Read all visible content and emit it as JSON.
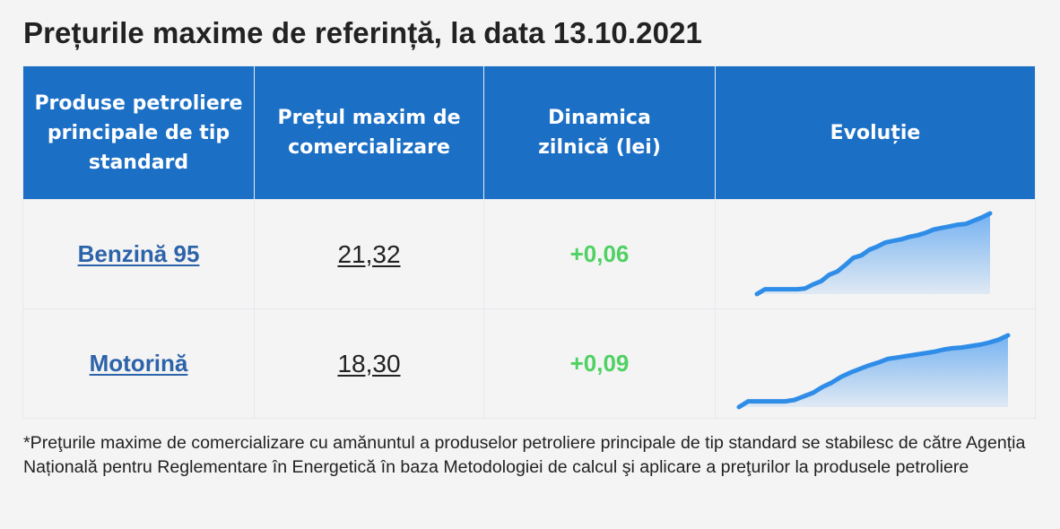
{
  "title": "Prețurile maxime de referință, la data 13.10.2021",
  "table": {
    "headers": {
      "product": "Produse petroliere principale de tip standard",
      "price": "Prețul maxim de comercializare",
      "dynamics": "Dinamica zilnică (lei)",
      "evolution": "Evoluție"
    },
    "rows": [
      {
        "product": "Benzină 95",
        "price": "21,32",
        "delta": "+0,06",
        "trend": [
          0,
          0.06,
          0.06,
          0.06,
          0.06,
          0.06,
          0.07,
          0.12,
          0.16,
          0.24,
          0.28,
          0.36,
          0.45,
          0.48,
          0.55,
          0.59,
          0.64,
          0.66,
          0.68,
          0.71,
          0.73,
          0.76,
          0.8,
          0.82,
          0.84,
          0.86,
          0.87,
          0.91,
          0.95,
          1.0
        ]
      },
      {
        "product": "Motorină",
        "price": "18,30",
        "delta": "+0,09",
        "trend": [
          0,
          0.08,
          0.08,
          0.08,
          0.08,
          0.08,
          0.1,
          0.15,
          0.2,
          0.28,
          0.34,
          0.42,
          0.48,
          0.53,
          0.58,
          0.62,
          0.67,
          0.69,
          0.71,
          0.73,
          0.75,
          0.77,
          0.8,
          0.82,
          0.83,
          0.85,
          0.87,
          0.9,
          0.94,
          1.0
        ]
      }
    ]
  },
  "footnote": "*Preţurile maxime de comercializare cu amănuntul a produselor petroliere principale de tip standard se stabilesc de către Agenția Națională pentru Reglementare în Energetică în baza Metodologiei de calcul şi aplicare a preţurilor la produsele petroliere",
  "colors": {
    "header_bg": "#1b6fc5",
    "link": "#2c63a9",
    "delta_positive": "#4fd163",
    "spark_line": "#2f8de8"
  }
}
